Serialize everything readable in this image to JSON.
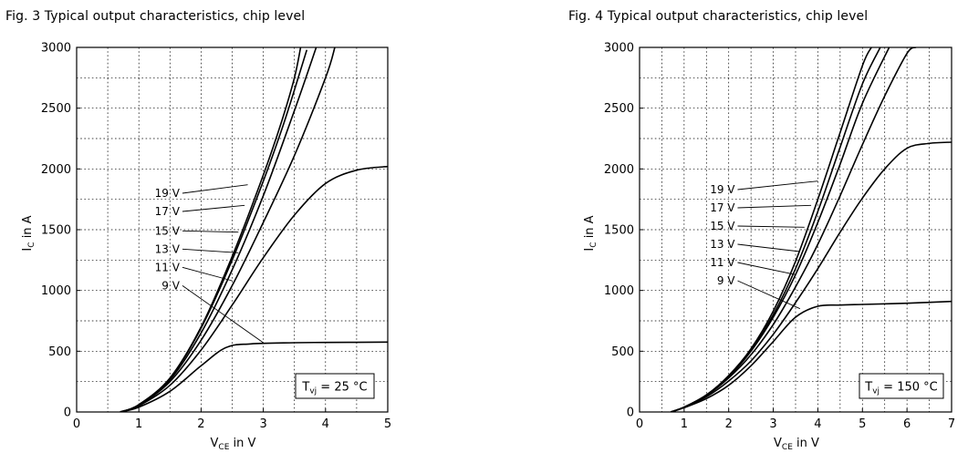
{
  "chart_data": [
    {
      "type": "line",
      "title": "Fig. 3  Typical output characteristics, chip level",
      "xlabel_main": "V",
      "xlabel_sub": "CE",
      "xlabel_rest": " in V",
      "ylabel_main": "I",
      "ylabel_sub": "C",
      "ylabel_rest": " in A",
      "xlim": [
        0,
        5
      ],
      "ylim": [
        0,
        3000
      ],
      "xticks": [
        "0",
        "1",
        "2",
        "3",
        "4",
        "5"
      ],
      "yticks": [
        "0",
        "500",
        "1000",
        "1500",
        "2000",
        "2500",
        "3000"
      ],
      "grid": true,
      "annotation_main": "T",
      "annotation_sub": "vj",
      "annotation_rest": " = 25 °C",
      "series": [
        {
          "name": "19 V",
          "x": [
            0.7,
            1.0,
            1.5,
            2.0,
            2.5,
            3.0,
            3.3,
            3.5,
            3.6
          ],
          "y": [
            0,
            60,
            280,
            700,
            1280,
            1950,
            2400,
            2750,
            3000
          ],
          "label_x": 1.7,
          "label_y": 1800,
          "point_x": 2.75,
          "point_y": 1870
        },
        {
          "name": "17 V",
          "x": [
            0.7,
            1.0,
            1.5,
            2.0,
            2.5,
            3.0,
            3.3,
            3.5,
            3.7
          ],
          "y": [
            0,
            60,
            275,
            690,
            1250,
            1900,
            2330,
            2650,
            2980
          ],
          "label_x": 1.7,
          "label_y": 1650,
          "point_x": 2.7,
          "point_y": 1700
        },
        {
          "name": "15 V",
          "x": [
            0.7,
            1.0,
            1.5,
            2.0,
            2.5,
            3.0,
            3.5,
            3.85
          ],
          "y": [
            0,
            58,
            265,
            650,
            1170,
            1780,
            2480,
            3000
          ],
          "label_x": 1.7,
          "label_y": 1490,
          "point_x": 2.6,
          "point_y": 1480
        },
        {
          "name": "13 V",
          "x": [
            0.7,
            1.0,
            1.5,
            2.0,
            2.5,
            3.0,
            3.5,
            4.0,
            4.15
          ],
          "y": [
            0,
            55,
            250,
            590,
            1040,
            1560,
            2110,
            2750,
            3000
          ],
          "label_x": 1.7,
          "label_y": 1340,
          "point_x": 2.6,
          "point_y": 1310
        },
        {
          "name": "11 V",
          "x": [
            0.7,
            1.0,
            1.5,
            2.0,
            2.5,
            3.0,
            3.5,
            4.0,
            4.5,
            5.0
          ],
          "y": [
            0,
            50,
            220,
            510,
            880,
            1270,
            1620,
            1880,
            1990,
            2020
          ],
          "label_x": 1.7,
          "label_y": 1190,
          "point_x": 2.5,
          "point_y": 1080
        },
        {
          "name": "9 V",
          "x": [
            0.7,
            1.0,
            1.5,
            2.0,
            2.4,
            2.8,
            3.5,
            4.0,
            5.0
          ],
          "y": [
            0,
            40,
            170,
            380,
            530,
            560,
            570,
            572,
            575
          ],
          "label_x": 1.7,
          "label_y": 1040,
          "point_x": 3.0,
          "point_y": 570
        }
      ]
    },
    {
      "type": "line",
      "title": "Fig. 4  Typical output characteristics, chip level",
      "xlabel_main": "V",
      "xlabel_sub": "CE",
      "xlabel_rest": " in V",
      "ylabel_main": "I",
      "ylabel_sub": "C",
      "ylabel_rest": " in A",
      "xlim": [
        0,
        7
      ],
      "ylim": [
        0,
        3000
      ],
      "xticks": [
        "0",
        "1",
        "2",
        "3",
        "4",
        "5",
        "6",
        "7"
      ],
      "yticks": [
        "0",
        "500",
        "1000",
        "1500",
        "2000",
        "2500",
        "3000"
      ],
      "grid": true,
      "annotation_main": "T",
      "annotation_sub": "vj",
      "annotation_rest": " = 150 °C",
      "series": [
        {
          "name": "19 V",
          "x": [
            0.7,
            1.0,
            1.5,
            2.0,
            2.5,
            3.0,
            3.5,
            4.0,
            4.5,
            5.0,
            5.2
          ],
          "y": [
            0,
            40,
            140,
            300,
            520,
            830,
            1240,
            1750,
            2300,
            2850,
            3000
          ],
          "label_x": 2.2,
          "label_y": 1830,
          "point_x": 4.0,
          "point_y": 1900
        },
        {
          "name": "17 V",
          "x": [
            0.7,
            1.0,
            1.5,
            2.0,
            2.5,
            3.0,
            3.5,
            4.0,
            4.5,
            5.0,
            5.4
          ],
          "y": [
            0,
            40,
            140,
            295,
            510,
            800,
            1180,
            1650,
            2180,
            2700,
            3000
          ],
          "label_x": 2.2,
          "label_y": 1680,
          "point_x": 3.85,
          "point_y": 1700
        },
        {
          "name": "15 V",
          "x": [
            0.7,
            1.0,
            1.5,
            2.0,
            2.5,
            3.0,
            3.5,
            4.0,
            4.5,
            5.0,
            5.6
          ],
          "y": [
            0,
            40,
            138,
            290,
            500,
            780,
            1130,
            1560,
            2040,
            2540,
            3000
          ],
          "label_x": 2.2,
          "label_y": 1530,
          "point_x": 3.7,
          "point_y": 1520
        },
        {
          "name": "13 V",
          "x": [
            0.7,
            1.0,
            1.5,
            2.0,
            2.5,
            3.0,
            3.5,
            4.0,
            4.5,
            5.0,
            5.5,
            6.0,
            6.2
          ],
          "y": [
            0,
            40,
            135,
            280,
            470,
            720,
            1030,
            1380,
            1780,
            2200,
            2600,
            2950,
            3000
          ],
          "label_x": 2.2,
          "label_y": 1380,
          "point_x": 3.6,
          "point_y": 1320
        },
        {
          "name": "11 V",
          "x": [
            0.7,
            1.0,
            1.5,
            2.0,
            2.5,
            3.0,
            3.5,
            4.0,
            4.5,
            5.0,
            5.5,
            6.0,
            6.5,
            7.0
          ],
          "y": [
            0,
            38,
            125,
            255,
            420,
            640,
            900,
            1180,
            1480,
            1760,
            2000,
            2170,
            2210,
            2220
          ],
          "label_x": 2.2,
          "label_y": 1230,
          "point_x": 3.5,
          "point_y": 1130
        },
        {
          "name": "9 V",
          "x": [
            0.7,
            1.0,
            1.5,
            2.0,
            2.5,
            3.0,
            3.5,
            4.0,
            4.5,
            5.0,
            6.0,
            7.0
          ],
          "y": [
            0,
            35,
            110,
            220,
            380,
            580,
            780,
            870,
            880,
            885,
            895,
            910
          ],
          "label_x": 2.2,
          "label_y": 1080,
          "point_x": 3.6,
          "point_y": 850
        }
      ]
    }
  ]
}
